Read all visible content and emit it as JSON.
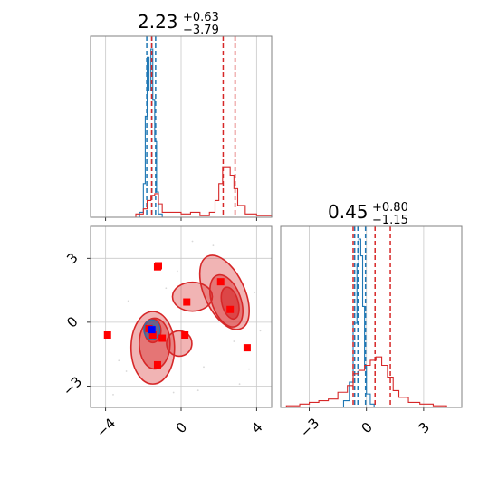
{
  "chart_data": [
    {
      "type": "histogram",
      "panel": "marginal-x",
      "title": {
        "value": "2.23",
        "plus": "+0.63",
        "minus": "−3.79"
      },
      "xlim": [
        -4.8,
        4.8
      ],
      "grid": true,
      "series": [
        {
          "color": "#1f77b4",
          "bins": [
            -2.2,
            -2.0,
            -1.9,
            -1.8,
            -1.7,
            -1.6,
            -1.5,
            -1.4,
            -1.3,
            -1.2,
            -1.0
          ],
          "counts": [
            0.03,
            0.2,
            0.6,
            0.95,
            0.75,
            1.0,
            0.7,
            0.45,
            0.15,
            0.02
          ],
          "quantile_lines": [
            -1.82,
            -1.55,
            -1.35
          ]
        },
        {
          "color": "#d62728",
          "bins": [
            -3.0,
            -2.4,
            -2.0,
            -1.8,
            -1.6,
            -1.4,
            -1.2,
            -1.0,
            -0.5,
            0.0,
            0.5,
            1.0,
            1.5,
            1.8,
            2.0,
            2.2,
            2.4,
            2.6,
            2.8,
            3.0,
            3.4,
            4.0,
            4.8
          ],
          "counts": [
            0.0,
            0.02,
            0.05,
            0.1,
            0.13,
            0.14,
            0.08,
            0.03,
            0.03,
            0.02,
            0.03,
            0.01,
            0.03,
            0.1,
            0.2,
            0.3,
            0.3,
            0.25,
            0.17,
            0.07,
            0.02,
            0.01
          ],
          "quantile_lines": [
            -1.56,
            2.23,
            2.86
          ]
        }
      ]
    },
    {
      "type": "histogram",
      "panel": "marginal-y",
      "title": {
        "value": "0.45",
        "plus": "+0.80",
        "minus": "−1.15"
      },
      "xlim": [
        -4.5,
        5.0
      ],
      "xticks": [
        "−3",
        "0",
        "3"
      ],
      "xtick_values": [
        -3,
        0,
        3
      ],
      "grid": true,
      "series": [
        {
          "color": "#1f77b4",
          "bins": [
            -1.2,
            -0.9,
            -0.7,
            -0.5,
            -0.4,
            -0.3,
            -0.2,
            -0.1,
            0.0,
            0.2,
            0.4
          ],
          "counts": [
            0.04,
            0.15,
            0.5,
            0.85,
            1.0,
            0.9,
            0.6,
            0.25,
            0.08,
            0.02
          ],
          "quantile_lines": [
            -0.62,
            -0.45,
            -0.05
          ]
        },
        {
          "color": "#d62728",
          "bins": [
            -4.2,
            -3.5,
            -3.0,
            -2.5,
            -2.0,
            -1.5,
            -1.0,
            -0.7,
            -0.4,
            -0.1,
            0.2,
            0.5,
            0.8,
            1.1,
            1.4,
            1.7,
            2.2,
            2.8,
            3.5,
            4.2
          ],
          "counts": [
            0.01,
            0.02,
            0.03,
            0.04,
            0.05,
            0.09,
            0.13,
            0.2,
            0.22,
            0.25,
            0.28,
            0.3,
            0.25,
            0.18,
            0.1,
            0.06,
            0.03,
            0.02,
            0.01
          ],
          "quantile_lines": [
            -0.7,
            0.45,
            1.25
          ]
        }
      ]
    },
    {
      "type": "contour",
      "panel": "joint",
      "xlim": [
        -4.8,
        4.8
      ],
      "ylim": [
        -4.0,
        4.5
      ],
      "xticks": [
        "−4",
        "0",
        "4"
      ],
      "xtick_values": [
        -4,
        0,
        4
      ],
      "yticks": [
        "−3",
        "0",
        "3"
      ],
      "ytick_values": [
        -3,
        0,
        3
      ],
      "grid": true,
      "red_markers": [
        {
          "x": -1.2,
          "y": 2.65
        },
        {
          "x": -1.25,
          "y": 2.6
        },
        {
          "x": 2.1,
          "y": 1.9
        },
        {
          "x": 0.3,
          "y": 0.95
        },
        {
          "x": 2.6,
          "y": 0.6
        },
        {
          "x": -1.7,
          "y": -0.3
        },
        {
          "x": -1.5,
          "y": -0.6
        },
        {
          "x": -1.0,
          "y": -0.75
        },
        {
          "x": -3.9,
          "y": -0.6
        },
        {
          "x": 0.2,
          "y": -0.6
        },
        {
          "x": 3.5,
          "y": -1.2
        },
        {
          "x": -1.25,
          "y": -2.0
        }
      ],
      "blue_markers": [
        {
          "x": -1.55,
          "y": -0.35
        }
      ],
      "colors": {
        "red": "#d62728",
        "blue": "#1f77b4",
        "marker_blue": "#0000ff",
        "marker_red": "#ff0000"
      }
    }
  ]
}
